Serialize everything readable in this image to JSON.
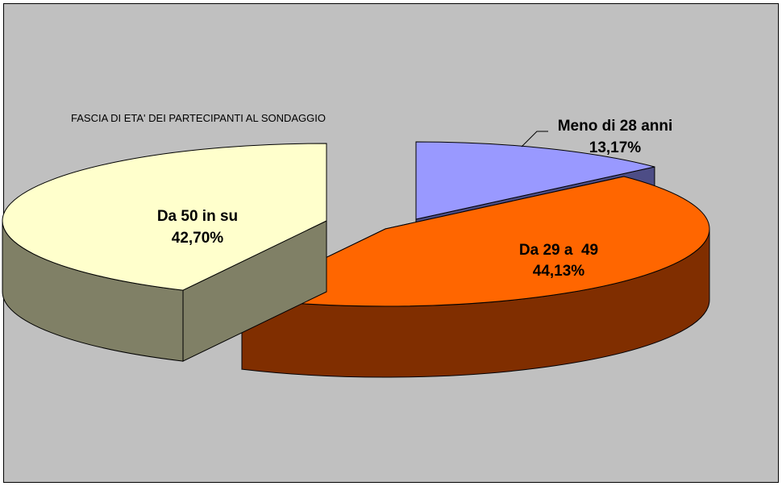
{
  "chart_data": {
    "type": "pie",
    "title": "FASCIA DI ETA' DEI PARTECIPANTI AL SONDAGGIO",
    "categories": [
      "Meno di 28 anni",
      "Da 29 a  49",
      "Da 50 in su"
    ],
    "values": [
      13.17,
      44.13,
      42.7
    ],
    "value_labels": [
      "13,17%",
      "44,13%",
      "42,70%"
    ],
    "unit": "%",
    "style": "3d-exploded",
    "legend": "none",
    "colors": {
      "background": "#c0c0c0",
      "frame": "#000000",
      "slice_top": [
        "#9999ff",
        "#ff6600",
        "#ffffcc"
      ],
      "slice_side": [
        "#4d4d86",
        "#802e00",
        "#808066"
      ]
    }
  }
}
